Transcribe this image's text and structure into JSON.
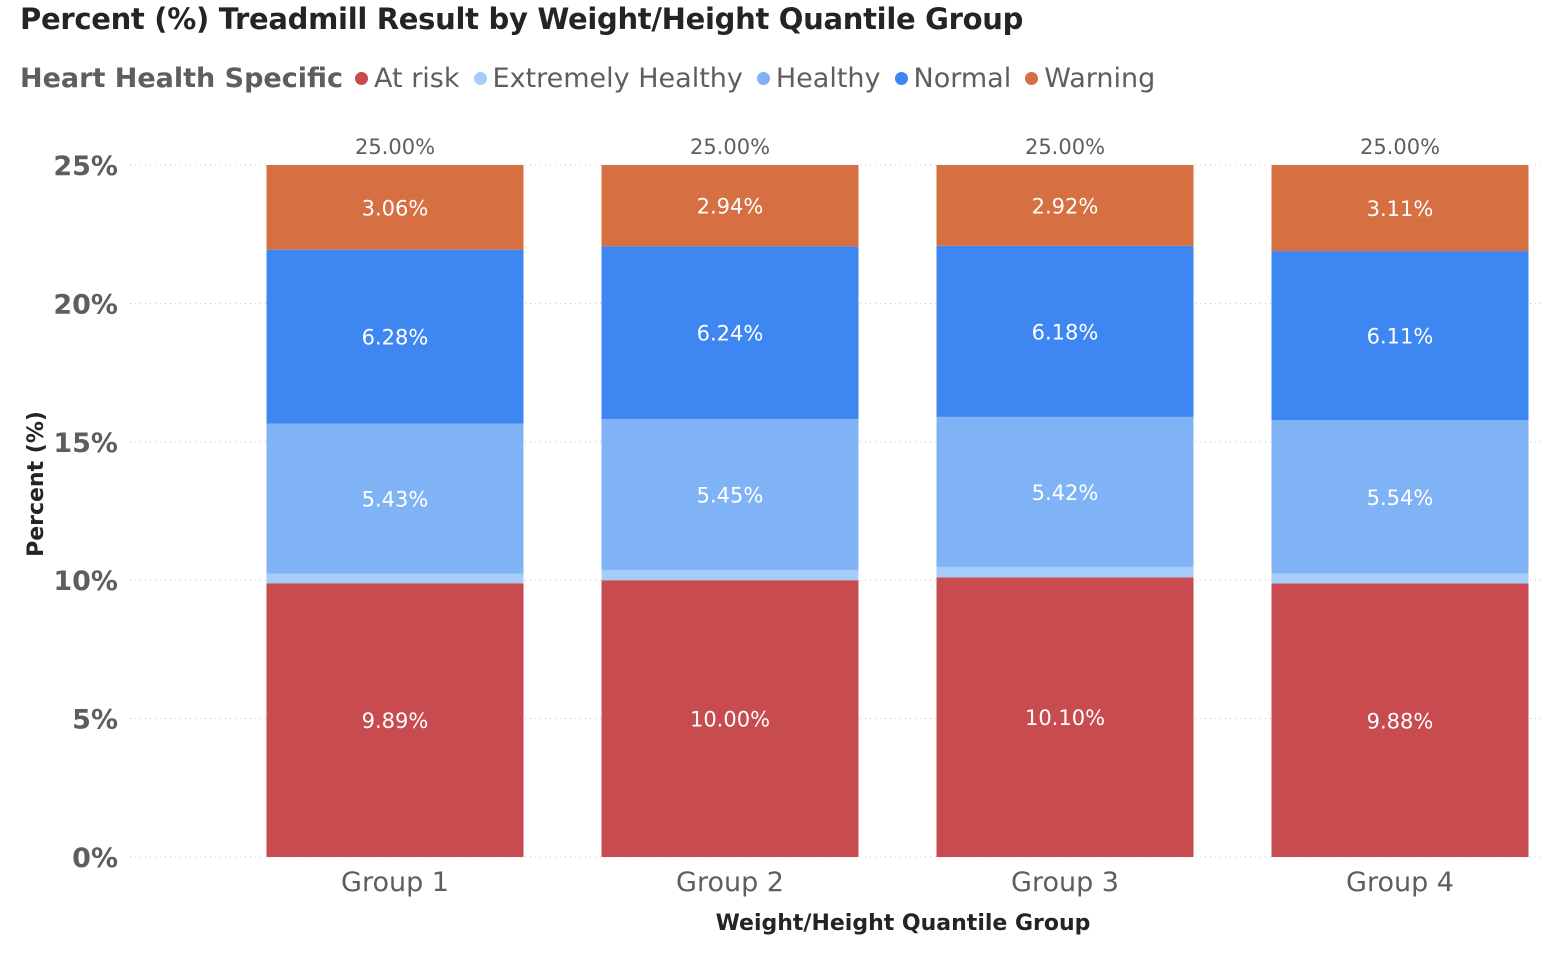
{
  "title": "Percent (%) Treadmill Result by Weight/Height Quantile Group",
  "legend": {
    "title": "Heart Health Specific",
    "items": [
      {
        "label": "At risk",
        "color": "#c84b50"
      },
      {
        "label": "Extremely Healthy",
        "color": "#a6cdf8"
      },
      {
        "label": "Healthy",
        "color": "#7fb3f5"
      },
      {
        "label": "Normal",
        "color": "#3e87f2"
      },
      {
        "label": "Warning",
        "color": "#d66f42"
      }
    ]
  },
  "chart_data": {
    "type": "bar",
    "stacked": true,
    "title": "Percent (%) Treadmill Result by Weight/Height Quantile Group",
    "xlabel": "Weight/Height Quantile Group",
    "ylabel": "Percent (%)",
    "ylim": [
      0,
      25
    ],
    "yticks": [
      "0%",
      "5%",
      "10%",
      "15%",
      "20%",
      "25%"
    ],
    "ytick_values": [
      0,
      5,
      10,
      15,
      20,
      25
    ],
    "grid": true,
    "legend_position": "top-left",
    "categories": [
      "Group 1",
      "Group 2",
      "Group 3",
      "Group 4"
    ],
    "totals": [
      "25.00%",
      "25.00%",
      "25.00%",
      "25.00%"
    ],
    "series": [
      {
        "name": "At risk",
        "color": "#c84b50",
        "values": [
          9.89,
          10.0,
          10.1,
          9.88
        ],
        "labels": [
          "9.89%",
          "10.00%",
          "10.10%",
          "9.88%"
        ]
      },
      {
        "name": "Extremely Healthy",
        "color": "#a6cdf8",
        "values": [
          0.34,
          0.37,
          0.38,
          0.36
        ],
        "labels": [
          "",
          "",
          "",
          ""
        ]
      },
      {
        "name": "Healthy",
        "color": "#7fb3f5",
        "values": [
          5.43,
          5.45,
          5.42,
          5.54
        ],
        "labels": [
          "5.43%",
          "5.45%",
          "5.42%",
          "5.54%"
        ]
      },
      {
        "name": "Normal",
        "color": "#3e87f2",
        "values": [
          6.28,
          6.24,
          6.18,
          6.11
        ],
        "labels": [
          "6.28%",
          "6.24%",
          "6.18%",
          "6.11%"
        ]
      },
      {
        "name": "Warning",
        "color": "#d66f42",
        "values": [
          3.06,
          2.94,
          2.92,
          3.11
        ],
        "labels": [
          "3.06%",
          "2.94%",
          "2.92%",
          "3.11%"
        ]
      }
    ]
  }
}
